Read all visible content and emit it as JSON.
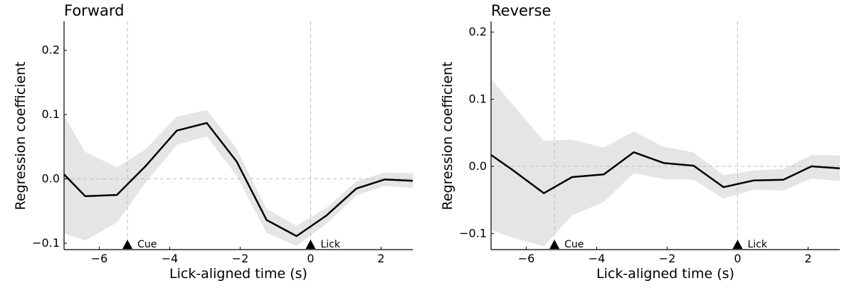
{
  "figure": {
    "y_axis_label": "Regression coefficient",
    "x_axis_label": "Lick-aligned time (s)"
  },
  "chart_data": [
    {
      "type": "line",
      "title": "Forward",
      "xlabel": "Lick-aligned time (s)",
      "ylabel": "Regression coefficient",
      "xlim": [
        -7,
        2.9
      ],
      "ylim": [
        -0.11,
        0.245
      ],
      "xticks": [
        -6,
        -4,
        -2,
        0,
        2
      ],
      "xtick_labels": [
        "−6",
        "−4",
        "−2",
        "0",
        "2"
      ],
      "yticks": [
        -0.1,
        0.0,
        0.1,
        0.2
      ],
      "ytick_labels": [
        "−0.1",
        "0.0",
        "0.1",
        "0.2"
      ],
      "grid": false,
      "reference_lines": {
        "horizontal": 0,
        "vertical": [
          -5.2,
          0
        ]
      },
      "markers": [
        {
          "x": -5.2,
          "label": "Cue"
        },
        {
          "x": 0,
          "label": "Lick"
        }
      ],
      "series": [
        {
          "color": "#000000",
          "band_color": "#e5e5e5",
          "x": [
            -7,
            -6.4,
            -5.5,
            -4.7,
            -3.8,
            -2.95,
            -2.1,
            -1.25,
            -0.4,
            0.45,
            1.3,
            2.1,
            2.9
          ],
          "y": [
            0.007,
            -0.027,
            -0.025,
            0.019,
            0.075,
            0.087,
            0.027,
            -0.064,
            -0.089,
            -0.057,
            -0.015,
            -0.001,
            -0.003
          ],
          "lower": [
            -0.085,
            -0.096,
            -0.068,
            -0.007,
            0.053,
            0.066,
            0.005,
            -0.084,
            -0.104,
            -0.07,
            -0.026,
            -0.011,
            -0.014
          ],
          "upper": [
            0.098,
            0.042,
            0.018,
            0.045,
            0.097,
            0.107,
            0.047,
            -0.047,
            -0.073,
            -0.045,
            -0.004,
            0.01,
            0.009
          ]
        }
      ]
    },
    {
      "type": "line",
      "title": "Reverse",
      "xlabel": "Lick-aligned time (s)",
      "ylabel": "Regression coefficient",
      "xlim": [
        -7,
        2.9
      ],
      "ylim": [
        -0.124,
        0.216
      ],
      "xticks": [
        -6,
        -4,
        -2,
        0,
        2
      ],
      "xtick_labels": [
        "−6",
        "−4",
        "−2",
        "0",
        "2"
      ],
      "yticks": [
        -0.1,
        0.0,
        0.1,
        0.2
      ],
      "ytick_labels": [
        "−0.1",
        "0.0",
        "0.1",
        "0.2"
      ],
      "grid": false,
      "reference_lines": {
        "horizontal": 0,
        "vertical": [
          -5.2,
          0
        ]
      },
      "markers": [
        {
          "x": -5.2,
          "label": "Cue"
        },
        {
          "x": 0,
          "label": "Lick"
        }
      ],
      "series": [
        {
          "color": "#000000",
          "band_color": "#e5e5e5",
          "x": [
            -7,
            -6.4,
            -5.5,
            -4.7,
            -3.8,
            -2.95,
            -2.1,
            -1.25,
            -0.4,
            0.45,
            1.3,
            2.1,
            2.9
          ],
          "y": [
            0.017,
            -0.005,
            -0.04,
            -0.016,
            -0.012,
            0.021,
            0.005,
            0.001,
            -0.031,
            -0.021,
            -0.02,
            0.0,
            -0.003
          ],
          "lower": [
            -0.095,
            -0.106,
            -0.119,
            -0.073,
            -0.053,
            -0.01,
            -0.019,
            -0.02,
            -0.048,
            -0.035,
            -0.036,
            -0.018,
            -0.022
          ],
          "upper": [
            0.13,
            0.093,
            0.038,
            0.04,
            0.028,
            0.052,
            0.029,
            0.021,
            -0.013,
            -0.006,
            -0.004,
            0.017,
            0.016
          ]
        }
      ]
    }
  ]
}
